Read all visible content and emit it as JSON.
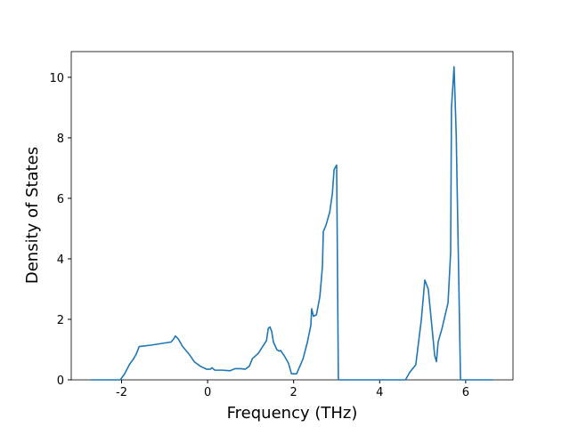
{
  "chart_data": {
    "type": "line",
    "xlabel": "Frequency (THz)",
    "ylabel": "Density of States",
    "xlim": [
      -3.17,
      7.1
    ],
    "ylim": [
      0,
      10.85
    ],
    "xticks": [
      -2,
      0,
      2,
      4,
      6
    ],
    "yticks": [
      0,
      2,
      4,
      6,
      8,
      10
    ],
    "grid": false,
    "x": [
      -2.71,
      -2.03,
      -1.93,
      -1.82,
      -1.72,
      -1.66,
      -1.59,
      -1.3,
      -0.99,
      -0.85,
      -0.79,
      -0.75,
      -0.68,
      -0.58,
      -0.43,
      -0.31,
      -0.17,
      -0.02,
      0.06,
      0.1,
      0.17,
      0.35,
      0.52,
      0.64,
      0.77,
      0.87,
      0.97,
      1.04,
      1.18,
      1.28,
      1.37,
      1.41,
      1.45,
      1.49,
      1.53,
      1.61,
      1.66,
      1.7,
      1.78,
      1.88,
      1.95,
      2.07,
      2.22,
      2.32,
      2.4,
      2.42,
      2.46,
      2.53,
      2.61,
      2.67,
      2.69,
      2.75,
      2.84,
      2.9,
      2.94,
      3.0,
      3.04,
      4.6,
      4.7,
      4.84,
      4.97,
      5.05,
      5.13,
      5.28,
      5.32,
      5.36,
      5.45,
      5.59,
      5.65,
      5.67,
      5.73,
      5.78,
      5.88,
      6.63
    ],
    "series": [
      {
        "color": "#1f77b4",
        "values": [
          0,
          0,
          0.2,
          0.5,
          0.7,
          0.85,
          1.1,
          1.15,
          1.22,
          1.25,
          1.35,
          1.45,
          1.35,
          1.1,
          0.85,
          0.6,
          0.45,
          0.35,
          0.35,
          0.4,
          0.32,
          0.32,
          0.3,
          0.37,
          0.37,
          0.35,
          0.45,
          0.7,
          0.88,
          1.1,
          1.3,
          1.7,
          1.75,
          1.6,
          1.25,
          1.0,
          0.95,
          0.97,
          0.8,
          0.55,
          0.2,
          0.2,
          0.7,
          1.25,
          1.8,
          2.35,
          2.1,
          2.15,
          2.75,
          3.75,
          4.9,
          5.1,
          5.55,
          6.15,
          6.95,
          7.1,
          0,
          0,
          0.25,
          0.5,
          2.0,
          3.3,
          3.0,
          0.8,
          0.6,
          1.25,
          1.7,
          2.55,
          4.2,
          9.0,
          10.35,
          8.1,
          0,
          0
        ]
      }
    ]
  }
}
